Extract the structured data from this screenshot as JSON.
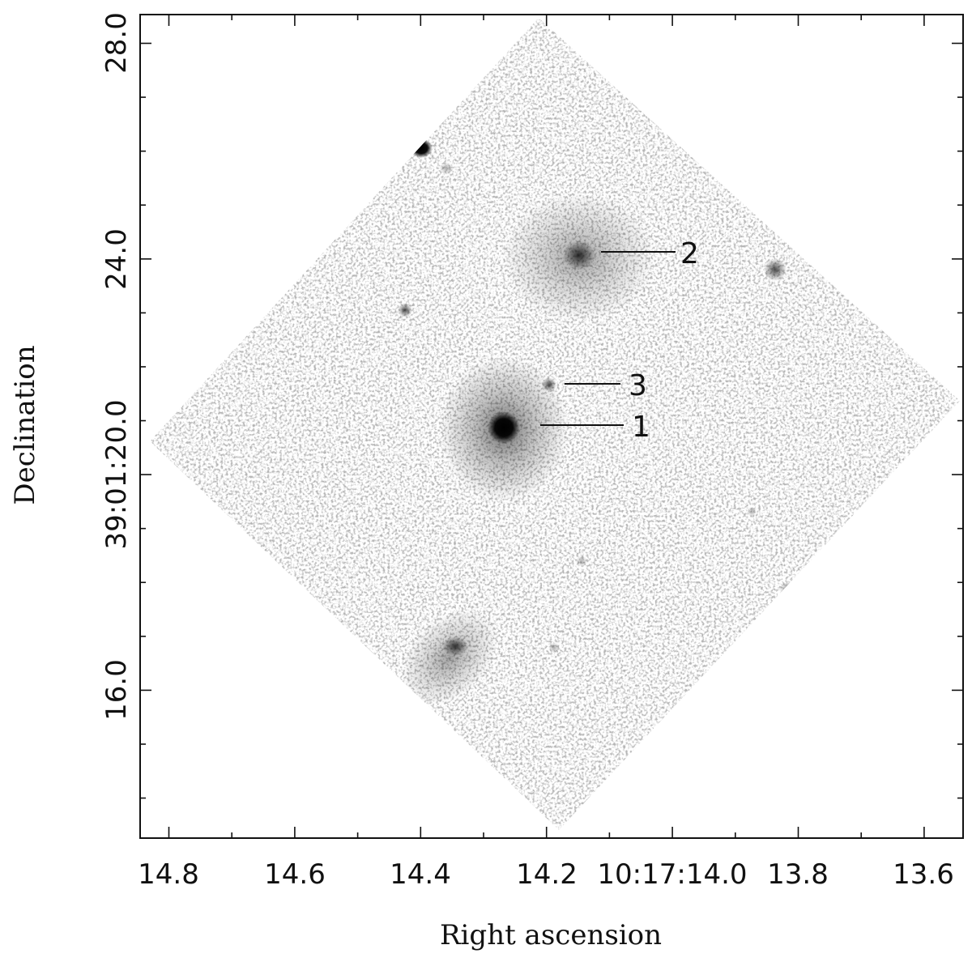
{
  "figure": {
    "x_axis_label": "Right ascension",
    "y_axis_label": "Declination",
    "x_ticks": [
      "14.8",
      "14.6",
      "14.4",
      "14.2",
      "10:17:14.0",
      "13.8",
      "13.6"
    ],
    "y_ticks": [
      "28.0",
      "24.0",
      "39:01:20.0",
      "16.0"
    ],
    "sources": [
      {
        "label": "1"
      },
      {
        "label": "2"
      },
      {
        "label": "3"
      }
    ],
    "colors": {
      "frame": "#111111",
      "background": "#ffffff",
      "source_core": "#000000"
    }
  }
}
